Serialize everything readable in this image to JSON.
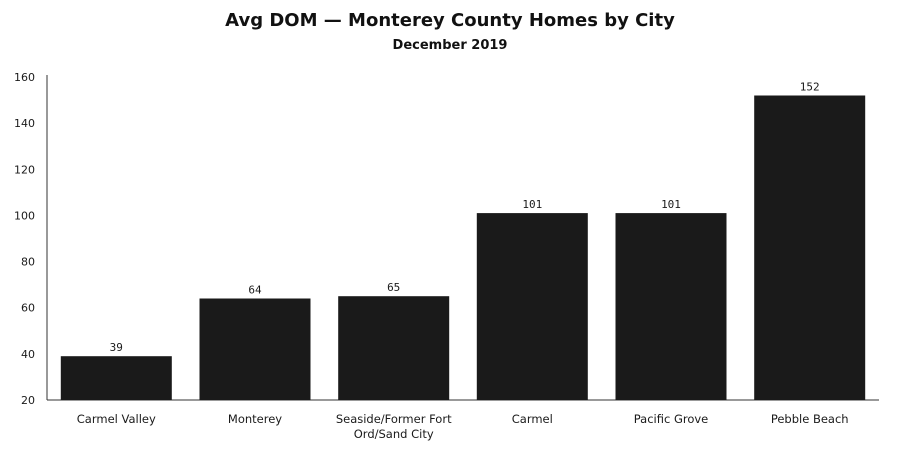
{
  "colors": {
    "bar": "#1a1a1a",
    "axis": "#333333",
    "background": "#ffffff"
  },
  "chart_data": {
    "type": "bar",
    "title": "Avg DOM — Monterey County Homes by City",
    "subtitle": "December 2019",
    "categories": [
      "Carmel Valley",
      "Monterey",
      "Seaside/Former Fort Ord/Sand City",
      "Carmel",
      "Pacific Grove",
      "Pebble Beach"
    ],
    "category_lines": [
      [
        "Carmel Valley"
      ],
      [
        "Monterey"
      ],
      [
        "Seaside/Former Fort",
        "Ord/Sand City"
      ],
      [
        "Carmel"
      ],
      [
        "Pacific Grove"
      ],
      [
        "Pebble Beach"
      ]
    ],
    "values": [
      39,
      64,
      65,
      101,
      101,
      152
    ],
    "data_labels": [
      "39",
      "64",
      "65",
      "101",
      "101",
      "152"
    ],
    "ylim": [
      20,
      160
    ],
    "yticks": [
      20,
      40,
      60,
      80,
      100,
      120,
      140,
      160
    ],
    "xlabel": "",
    "ylabel": "",
    "grid": false,
    "legend": "none"
  }
}
